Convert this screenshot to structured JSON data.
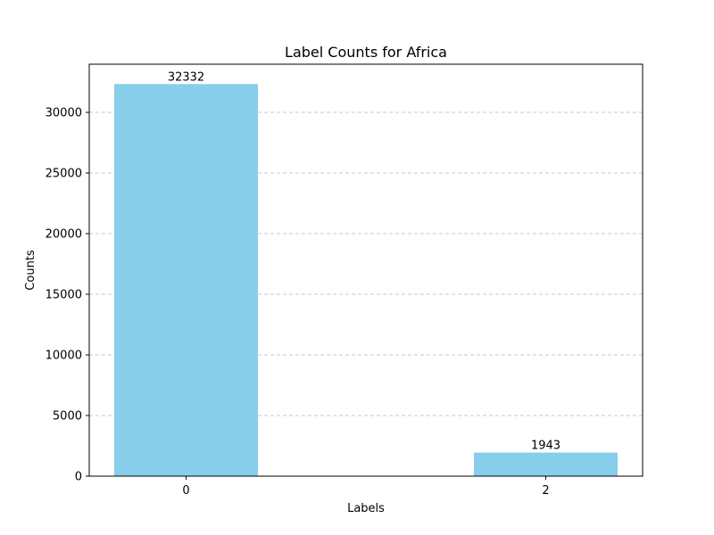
{
  "chart_data": {
    "type": "bar",
    "title": "Label Counts for Africa",
    "xlabel": "Labels",
    "ylabel": "Counts",
    "categories": [
      "0",
      "2"
    ],
    "values": [
      32332,
      1943
    ],
    "value_labels": [
      "32332",
      "1943"
    ],
    "ylim": [
      0,
      34000
    ],
    "yticks": [
      0,
      5000,
      10000,
      15000,
      20000,
      25000,
      30000
    ],
    "ytick_labels": [
      "0",
      "5000",
      "10000",
      "15000",
      "20000",
      "25000",
      "30000"
    ],
    "grid": {
      "axis": "y",
      "style": "dashed",
      "color": "#c8c8c8"
    },
    "bar_color": "#87ceeb",
    "legend": "none"
  }
}
